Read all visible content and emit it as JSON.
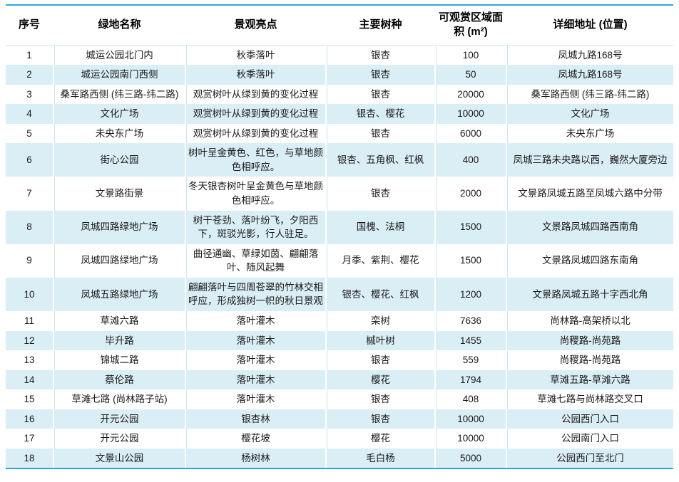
{
  "style": {
    "accent_border": "#2BA7DE",
    "band_row": "#DAEEF5",
    "divider_line": "#CBE6F3",
    "header_text": "#000000",
    "body_text": "#1A1A1A"
  },
  "chart_data": {
    "type": "table",
    "columns": [
      "序号",
      "绿地名称",
      "景观亮点",
      "主要树种",
      "可观赏区域面积 (m²)",
      "详细地址 (位置)"
    ],
    "rows": [
      [
        "1",
        "城运公园北门内",
        "秋季落叶",
        "银杏",
        "100",
        "凤城九路168号"
      ],
      [
        "2",
        "城运公园南门西侧",
        "秋季落叶",
        "银杏",
        "50",
        "凤城九路168号"
      ],
      [
        "3",
        "桑军路西侧 (纬三路-纬二路)",
        "观赏树叶从绿到黄的变化过程",
        "银杏",
        "20000",
        "桑军路西侧 (纬三路-纬二路)"
      ],
      [
        "4",
        "文化广场",
        "观赏树叶从绿到黄的变化过程",
        "银杏、樱花",
        "10000",
        "文化广场"
      ],
      [
        "5",
        "未央东广场",
        "观赏树叶从绿到黄的变化过程",
        "银杏",
        "6000",
        "未央东广场"
      ],
      [
        "6",
        "街心公园",
        "树叶呈金黄色、红色，与草地颜色相呼应。",
        "银杏、五角枫、红枫",
        "400",
        "凤城三路未央路以西，巍然大厦旁边"
      ],
      [
        "7",
        "文景路街景",
        "冬天银杏树叶呈金黄色与草地颜色相呼应。",
        "银杏",
        "2000",
        "文景路凤城五路至凤城六路中分带"
      ],
      [
        "8",
        "凤城四路绿地广场",
        "树干苍劲、落叶纷飞，夕阳西下，斑驳光影，行人驻足。",
        "国槐、法桐",
        "1500",
        "文景路凤城四路西南角"
      ],
      [
        "9",
        "凤城四路绿地广场",
        "曲径通幽、草绿如茵、翩翩落叶、随风起舞",
        "月季、紫荆、樱花",
        "1500",
        "文景路凤城四路东南角"
      ],
      [
        "10",
        "凤城五路绿地广场",
        "翩翩落叶与四周苍翠的竹林交相呼应，形成独树一帜的秋日景观",
        "银杏、樱花、红枫",
        "1200",
        "文景路凤城五路十字西北角"
      ],
      [
        "11",
        "草滩六路",
        "落叶灌木",
        "栾树",
        "7636",
        "尚林路-高架桥以北"
      ],
      [
        "12",
        "毕升路",
        "落叶灌木",
        "槭叶树",
        "1455",
        "尚稷路-尚苑路"
      ],
      [
        "13",
        "锦城二路",
        "落叶灌木",
        "银杏",
        "559",
        "尚稷路-尚苑路"
      ],
      [
        "14",
        "蔡伦路",
        "落叶灌木",
        "樱花",
        "1794",
        "草滩五路-草滩六路"
      ],
      [
        "15",
        "草滩七路 (尚林路子站)",
        "落叶灌木",
        "银杏",
        "408",
        "草滩七路与尚林路交叉口"
      ],
      [
        "16",
        "开元公园",
        "银杏林",
        "银杏",
        "10000",
        "公园西门入口"
      ],
      [
        "17",
        "开元公园",
        "樱花坡",
        "樱花",
        "10000",
        "公园南门入口"
      ],
      [
        "18",
        "文景山公园",
        "杨树林",
        "毛白杨",
        "5000",
        "公园西门至北门"
      ]
    ]
  }
}
